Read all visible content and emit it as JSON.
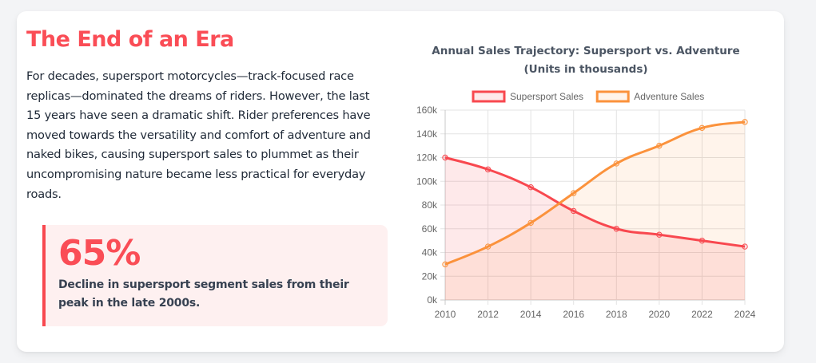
{
  "intro": {
    "title": "The End of an Era",
    "body": "For decades, supersport motorcycles—track-focused race replicas—dominated the dreams of riders. However, the last 15 years have seen a dramatic shift. Rider preferences have moved towards the versatility and comfort of adventure and naked bikes, causing supersport sales to plummet as their uncompromising nature became less practical for everyday roads."
  },
  "stat": {
    "value": "65%",
    "description": "Decline in supersport segment sales from their peak in the late 2000s."
  },
  "colors": {
    "accent": "#fa4d56",
    "supersport": "#f8484f",
    "adventure": "#fb923c",
    "text_dark": "#1f2937"
  },
  "chart_data": {
    "type": "line",
    "title": [
      "Annual Sales Trajectory: Supersport vs. Adventure",
      "(Units in thousands)"
    ],
    "x": [
      "2010",
      "2012",
      "2014",
      "2016",
      "2018",
      "2020",
      "2022",
      "2024"
    ],
    "series": [
      {
        "name": "Supersport Sales",
        "values": [
          120,
          110,
          95,
          75,
          60,
          55,
          50,
          45
        ],
        "color": "#f8484f",
        "fill": "rgba(248,72,79,0.12)"
      },
      {
        "name": "Adventure Sales",
        "values": [
          30,
          45,
          65,
          90,
          115,
          130,
          145,
          150
        ],
        "color": "#fb923c",
        "fill": "rgba(251,146,60,0.10)"
      }
    ],
    "ylim": [
      0,
      160
    ],
    "yticks": [
      "0k",
      "20k",
      "40k",
      "60k",
      "80k",
      "100k",
      "120k",
      "140k",
      "160k"
    ],
    "ytick_values": [
      0,
      20,
      40,
      60,
      80,
      100,
      120,
      140,
      160
    ],
    "grid": true,
    "legend": "top",
    "area_fill": true
  }
}
